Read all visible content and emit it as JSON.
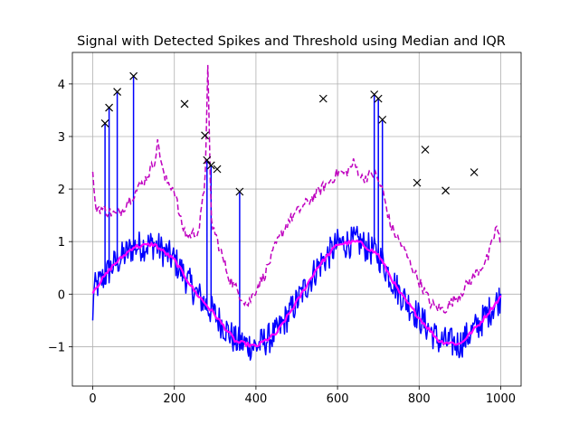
{
  "chart_data": {
    "type": "line",
    "title": "Signal with Detected Spikes and Threshold using Median and IQR",
    "xlabel": "",
    "ylabel": "",
    "xlim": [
      -50,
      1050
    ],
    "ylim": [
      -1.75,
      4.6
    ],
    "grid": true,
    "x_ticks": [
      0,
      200,
      400,
      600,
      800,
      1000
    ],
    "x_tick_labels": [
      "0",
      "200",
      "400",
      "600",
      "800",
      "1000"
    ],
    "y_ticks": [
      -1,
      0,
      1,
      2,
      3,
      4
    ],
    "y_tick_labels": [
      "−1",
      "0",
      "1",
      "2",
      "3",
      "4"
    ],
    "colors": {
      "signal": "#0000ff",
      "median": "#ff00ff",
      "threshold": "#bf00bf",
      "spike": "#000000",
      "grid": "#b0b0b0"
    },
    "series": [
      {
        "style": "solid",
        "color": "#0000ff",
        "kind": "signal",
        "noise_amplitude": 0.3,
        "base_x": [
          0,
          50,
          100,
          150,
          200,
          250,
          300,
          350,
          400,
          450,
          500,
          550,
          600,
          650,
          700,
          750,
          800,
          850,
          900,
          950,
          1000
        ],
        "base_y": [
          0.05,
          0.55,
          0.9,
          0.95,
          0.65,
          0.05,
          -0.4,
          -0.9,
          -1.0,
          -0.75,
          -0.15,
          0.5,
          0.95,
          1.0,
          0.75,
          0.05,
          -0.45,
          -0.9,
          -0.95,
          -0.55,
          -0.05
        ]
      },
      {
        "style": "solid",
        "color": "#ff00ff",
        "kind": "rolling-median",
        "x": [
          0,
          50,
          100,
          150,
          200,
          250,
          300,
          350,
          400,
          450,
          500,
          550,
          600,
          650,
          700,
          750,
          800,
          850,
          900,
          950,
          1000
        ],
        "y": [
          0.05,
          0.55,
          0.9,
          0.95,
          0.65,
          0.05,
          -0.4,
          -0.9,
          -1.0,
          -0.75,
          -0.15,
          0.5,
          0.95,
          1.0,
          0.75,
          0.05,
          -0.45,
          -0.9,
          -0.95,
          -0.55,
          -0.05
        ]
      },
      {
        "style": "dashed",
        "color": "#bf00bf",
        "kind": "threshold",
        "x": [
          0,
          5,
          10,
          30,
          60,
          100,
          130,
          150,
          160,
          175,
          200,
          215,
          230,
          260,
          275,
          282,
          290,
          310,
          335,
          360,
          380,
          400,
          420,
          450,
          480,
          520,
          560,
          600,
          620,
          640,
          660,
          690,
          710,
          730,
          760,
          790,
          830,
          860,
          900,
          940,
          970,
          990,
          1000
        ],
        "y": [
          2.4,
          1.65,
          1.65,
          1.6,
          1.5,
          1.9,
          2.2,
          2.5,
          2.9,
          2.2,
          2.0,
          1.4,
          1.1,
          1.2,
          2.1,
          4.3,
          1.4,
          0.9,
          0.3,
          0.0,
          -0.2,
          0.1,
          0.35,
          0.95,
          1.4,
          1.7,
          2.0,
          2.3,
          2.3,
          2.5,
          2.2,
          2.3,
          2.0,
          1.3,
          0.9,
          0.4,
          -0.2,
          -0.3,
          0.0,
          0.4,
          0.7,
          1.3,
          0.9
        ]
      }
    ],
    "spikes": {
      "marker": "x",
      "x": [
        30,
        40,
        60,
        100,
        225,
        275,
        280,
        290,
        305,
        360,
        565,
        690,
        700,
        710,
        795,
        815,
        865,
        935
      ],
      "y": [
        3.25,
        3.55,
        3.85,
        4.15,
        3.62,
        3.02,
        2.55,
        2.45,
        2.38,
        1.95,
        3.72,
        3.8,
        3.72,
        3.32,
        2.12,
        2.75,
        1.97,
        2.32
      ]
    }
  }
}
